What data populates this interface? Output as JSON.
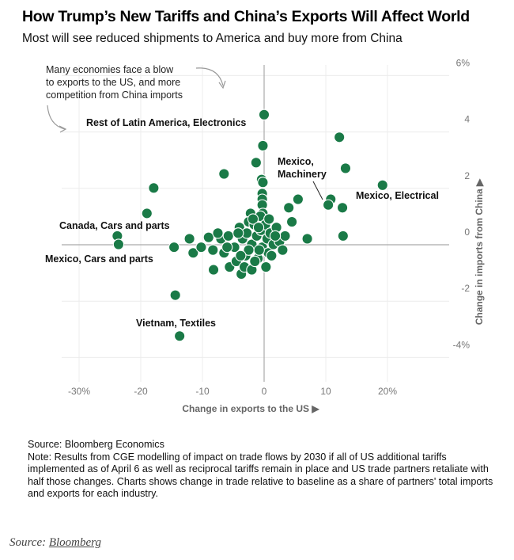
{
  "header": {
    "title": "How Trump’s New Tariffs and China’s Exports Will Affect World",
    "subtitle": "Most will see reduced shipments to America and buy more from China"
  },
  "chart_data": {
    "type": "scatter",
    "title": "How Trump’s New Tariffs and China’s Exports Will Affect World",
    "subtitle": "Most will see reduced shipments to America and buy more from China",
    "xlabel": "Change in exports to the US ▶",
    "ylabel": "Change in imports from China ▶",
    "xlim": [
      -33,
      26
    ],
    "ylim": [
      -4.3,
      6.2
    ],
    "xticks": [
      {
        "value": -30,
        "label": "-30%"
      },
      {
        "value": -20,
        "label": "-20"
      },
      {
        "value": -10,
        "label": "-10"
      },
      {
        "value": 0,
        "label": "0"
      },
      {
        "value": 10,
        "label": "10"
      },
      {
        "value": 20,
        "label": "20%"
      }
    ],
    "yticks": [
      {
        "value": 6,
        "label": "6%"
      },
      {
        "value": 4,
        "label": "4"
      },
      {
        "value": 2,
        "label": "2"
      },
      {
        "value": 0,
        "label": "0"
      },
      {
        "value": -2,
        "label": "-2"
      },
      {
        "value": -4,
        "label": "-4%"
      }
    ],
    "grid": true,
    "point_color": "#1a7a47",
    "annotation": "Many economies face a blow to exports to the US, and more competition from China imports",
    "labeled_points": [
      {
        "label": "Rest of Latin America, Electronics",
        "x": 0.0,
        "y": 4.5
      },
      {
        "label": "Mexico, Machinery",
        "x": 10.6,
        "y": 1.4
      },
      {
        "label": "Mexico, Electrical",
        "x": 19.2,
        "y": 2.0
      },
      {
        "label": "Canada, Cars and parts",
        "x": -23.8,
        "y": 0.2
      },
      {
        "label": "Mexico, Cars and parts",
        "x": -14.6,
        "y": -0.2
      },
      {
        "label": "Vietnam, Textiles",
        "x": -13.7,
        "y": -3.35
      }
    ],
    "points": [
      [
        0.0,
        4.5
      ],
      [
        -0.2,
        3.4
      ],
      [
        -1.3,
        2.8
      ],
      [
        -6.5,
        2.4
      ],
      [
        12.2,
        3.7
      ],
      [
        13.2,
        2.6
      ],
      [
        19.2,
        2.0
      ],
      [
        10.8,
        1.5
      ],
      [
        10.4,
        1.3
      ],
      [
        12.7,
        1.2
      ],
      [
        5.5,
        1.5
      ],
      [
        4.0,
        1.2
      ],
      [
        4.5,
        0.7
      ],
      [
        7.0,
        0.1
      ],
      [
        12.8,
        0.2
      ],
      [
        -17.9,
        1.9
      ],
      [
        -19.0,
        1.0
      ],
      [
        -23.8,
        0.2
      ],
      [
        -23.6,
        -0.1
      ],
      [
        -14.6,
        -0.2
      ],
      [
        -14.4,
        -1.9
      ],
      [
        -13.7,
        -3.35
      ],
      [
        -0.4,
        2.2
      ],
      [
        -0.2,
        2.1
      ],
      [
        -0.3,
        1.7
      ],
      [
        -0.3,
        1.5
      ],
      [
        -0.3,
        1.3
      ],
      [
        -0.2,
        1.0
      ],
      [
        -2.2,
        1.0
      ],
      [
        -2.5,
        0.7
      ],
      [
        -12.1,
        0.1
      ],
      [
        -11.5,
        -0.4
      ],
      [
        -10.2,
        -0.2
      ],
      [
        -8.2,
        -1.0
      ],
      [
        -5.6,
        -0.9
      ],
      [
        -3.7,
        -1.15
      ],
      [
        -9.0,
        0.15
      ],
      [
        -8.3,
        -0.3
      ],
      [
        -7.0,
        0.1
      ],
      [
        -6.5,
        -0.4
      ],
      [
        -5.8,
        0.2
      ],
      [
        -4.8,
        -0.2
      ],
      [
        -4.0,
        0.5
      ],
      [
        -3.5,
        0.1
      ],
      [
        -3.0,
        -0.5
      ],
      [
        -2.8,
        0.3
      ],
      [
        -2.0,
        -0.1
      ],
      [
        -1.6,
        0.6
      ],
      [
        -1.2,
        0.2
      ],
      [
        -1.0,
        -0.6
      ],
      [
        -0.6,
        0.9
      ],
      [
        -0.5,
        0.4
      ],
      [
        -0.3,
        -0.2
      ],
      [
        0.2,
        0.6
      ],
      [
        0.5,
        0.1
      ],
      [
        0.7,
        -0.4
      ],
      [
        1.0,
        0.3
      ],
      [
        1.5,
        -0.1
      ],
      [
        2.0,
        0.5
      ],
      [
        2.5,
        0.0
      ],
      [
        3.0,
        -0.3
      ],
      [
        3.4,
        0.2
      ],
      [
        -4.5,
        -0.7
      ],
      [
        -3.2,
        -0.9
      ],
      [
        -2.0,
        -1.0
      ],
      [
        -1.5,
        -0.7
      ],
      [
        0.3,
        -0.9
      ],
      [
        -0.8,
        -0.3
      ],
      [
        1.2,
        -0.5
      ],
      [
        -6.0,
        -0.2
      ],
      [
        -7.5,
        0.3
      ],
      [
        -1.8,
        0.8
      ],
      [
        -0.9,
        0.5
      ],
      [
        0.8,
        0.8
      ],
      [
        -2.5,
        -0.3
      ],
      [
        -4.2,
        0.3
      ],
      [
        1.8,
        0.2
      ],
      [
        -3.8,
        -0.5
      ]
    ]
  },
  "notes": {
    "source": "Source: Bloomberg Economics",
    "note": "Note: Results from CGE modelling of impact on trade flows by 2030 if all of US additional tariffs implemented as of April 6 as well as reciprocal tariffs remain in place and US trade partners retaliate with half those changes. Charts shows change in trade relative to baseline as a share of partners' total imports and exports for each industry."
  },
  "footer": {
    "prefix": "Source: ",
    "link_text": "Bloomberg"
  }
}
